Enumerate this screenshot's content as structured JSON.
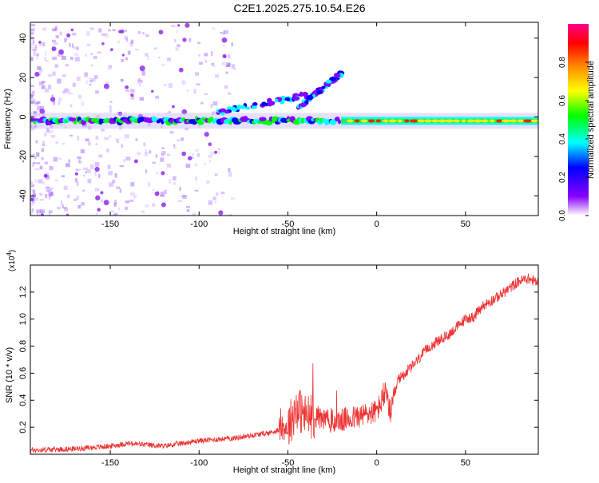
{
  "page_title": "C2E1.2025.275.10.54.E26",
  "chart_data": [
    {
      "type": "heatmap",
      "title": "C2E1.2025.275.10.54.E26",
      "xlabel": "Height of straight line (km)",
      "ylabel": "Frequency (Hz)",
      "xlim": [
        -195,
        91
      ],
      "ylim": [
        -50,
        48
      ],
      "x_ticks": [
        -150,
        -100,
        -50,
        0,
        50
      ],
      "x_tick_labels": [
        "-150",
        "-100",
        "-50",
        "0",
        "50"
      ],
      "y_ticks": [
        -40,
        -20,
        0,
        20,
        40
      ],
      "y_tick_labels": [
        "-40",
        "-20",
        "0",
        "20",
        "40"
      ],
      "colorbar": {
        "label": "Normalized spectral amplitude",
        "range": [
          0,
          1
        ],
        "ticks": [
          0.0,
          0.2,
          0.4,
          0.6,
          0.8
        ],
        "tick_labels": [
          "0.0",
          "0.2",
          "0.4",
          "0.6",
          "0.8"
        ],
        "colors": [
          "#ffffff",
          "#8800ff",
          "#0000ff",
          "#00ffff",
          "#00ff00",
          "#ffff00",
          "#ff8800",
          "#ff0000",
          "#ff0088"
        ]
      },
      "features": [
        {
          "name": "main carrier",
          "x_range": [
            -195,
            91
          ],
          "frequency": -2
        },
        {
          "name": "upper branch 1",
          "x_range": [
            -90,
            -35
          ],
          "frequency_range": [
            2,
            12
          ]
        },
        {
          "name": "upper branch 2",
          "x_range": [
            -45,
            -20
          ],
          "frequency_range": [
            4,
            22
          ]
        }
      ]
    },
    {
      "type": "line",
      "xlabel": "Height of straight line (km)",
      "ylabel": "SNR (10 * v/v)",
      "y_scale_label": "(x10",
      "y_scale_exp": "4",
      "y_scale_close": ")",
      "color": "#ee3333",
      "xlim": [
        -195,
        91
      ],
      "ylim": [
        0,
        1.4
      ],
      "x_ticks": [
        -150,
        -100,
        -50,
        0,
        50
      ],
      "x_tick_labels": [
        "-150",
        "-100",
        "-50",
        "0",
        "50"
      ],
      "y_ticks": [
        0.2,
        0.4,
        0.6,
        0.8,
        1.0,
        1.2
      ],
      "y_tick_labels": [
        "0.2",
        "0.4",
        "0.6",
        "0.8",
        "1.0",
        "1.2"
      ],
      "x": [
        -195,
        -170,
        -150,
        -140,
        -120,
        -100,
        -80,
        -60,
        -50,
        -45,
        -40,
        -35,
        -30,
        -25,
        -20,
        -10,
        0,
        5,
        8,
        12,
        20,
        30,
        40,
        50,
        55,
        60,
        70,
        80,
        85,
        91
      ],
      "y": [
        0.03,
        0.04,
        0.06,
        0.08,
        0.06,
        0.1,
        0.12,
        0.16,
        0.2,
        0.35,
        0.28,
        0.28,
        0.26,
        0.24,
        0.25,
        0.28,
        0.32,
        0.45,
        0.3,
        0.55,
        0.65,
        0.8,
        0.88,
        1.0,
        1.02,
        1.1,
        1.18,
        1.28,
        1.3,
        1.27
      ]
    }
  ]
}
